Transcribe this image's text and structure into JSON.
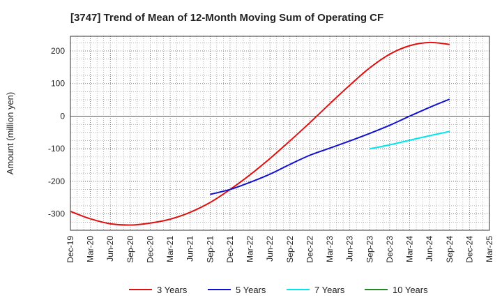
{
  "chart_data": {
    "type": "line",
    "title": "[3747]  Trend of Mean of 12-Month Moving Sum of Operating CF",
    "xlabel": "",
    "ylabel": "Amount (million yen)",
    "ylim": [
      -350,
      245
    ],
    "yticks": [
      200,
      100,
      0,
      -100,
      -200,
      -300
    ],
    "categories": [
      "Dec-19",
      "Mar-20",
      "Jun-20",
      "Sep-20",
      "Dec-20",
      "Mar-21",
      "Jun-21",
      "Sep-21",
      "Dec-21",
      "Mar-22",
      "Jun-22",
      "Sep-22",
      "Dec-22",
      "Mar-23",
      "Jun-23",
      "Sep-23",
      "Dec-23",
      "Mar-24",
      "Jun-24",
      "Sep-24",
      "Dec-24",
      "Mar-25"
    ],
    "grid": true,
    "legend_position": "bottom",
    "series": [
      {
        "name": "3 Years",
        "color": "#e01010",
        "values": [
          -292,
          -315,
          -330,
          -334,
          -328,
          -316,
          -295,
          -265,
          -225,
          -180,
          -130,
          -76,
          -20,
          38,
          95,
          148,
          190,
          216,
          226,
          220,
          null,
          null
        ]
      },
      {
        "name": "5 Years",
        "color": "#1010d0",
        "values": [
          null,
          null,
          null,
          null,
          null,
          null,
          null,
          -240,
          -225,
          -203,
          -178,
          -148,
          -120,
          -98,
          -76,
          -53,
          -28,
          0,
          27,
          52,
          null,
          null
        ]
      },
      {
        "name": "7 Years",
        "color": "#00e5ee",
        "values": [
          null,
          null,
          null,
          null,
          null,
          null,
          null,
          null,
          null,
          null,
          null,
          null,
          null,
          null,
          null,
          -100,
          -88,
          -74,
          -60,
          -47,
          null,
          null
        ]
      },
      {
        "name": "10 Years",
        "color": "#228b22",
        "values": [
          null,
          null,
          null,
          null,
          null,
          null,
          null,
          null,
          null,
          null,
          null,
          null,
          null,
          null,
          null,
          null,
          null,
          null,
          null,
          null,
          null,
          null
        ]
      }
    ]
  }
}
